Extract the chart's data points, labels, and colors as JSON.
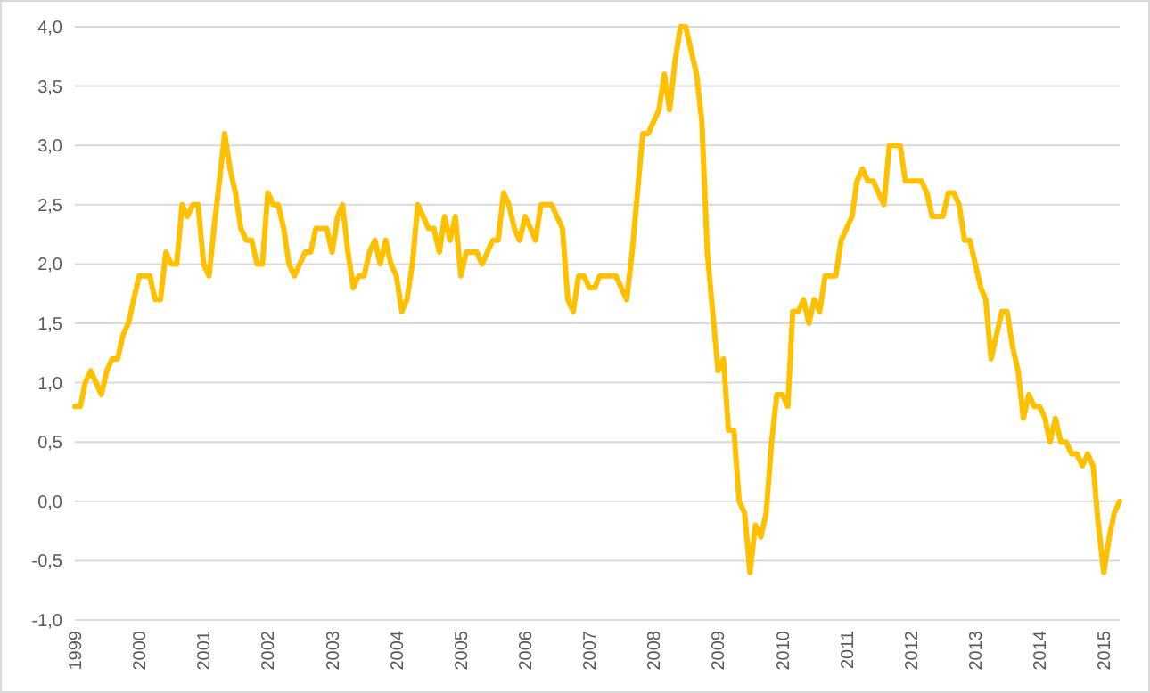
{
  "chart_data": {
    "type": "line",
    "x": [
      "1999-01",
      "1999-02",
      "1999-03",
      "1999-04",
      "1999-05",
      "1999-06",
      "1999-07",
      "1999-08",
      "1999-09",
      "1999-10",
      "1999-11",
      "1999-12",
      "2000-01",
      "2000-02",
      "2000-03",
      "2000-04",
      "2000-05",
      "2000-06",
      "2000-07",
      "2000-08",
      "2000-09",
      "2000-10",
      "2000-11",
      "2000-12",
      "2001-01",
      "2001-02",
      "2001-03",
      "2001-04",
      "2001-05",
      "2001-06",
      "2001-07",
      "2001-08",
      "2001-09",
      "2001-10",
      "2001-11",
      "2001-12",
      "2002-01",
      "2002-02",
      "2002-03",
      "2002-04",
      "2002-05",
      "2002-06",
      "2002-07",
      "2002-08",
      "2002-09",
      "2002-10",
      "2002-11",
      "2002-12",
      "2003-01",
      "2003-02",
      "2003-03",
      "2003-04",
      "2003-05",
      "2003-06",
      "2003-07",
      "2003-08",
      "2003-09",
      "2003-10",
      "2003-11",
      "2003-12",
      "2004-01",
      "2004-02",
      "2004-03",
      "2004-04",
      "2004-05",
      "2004-06",
      "2004-07",
      "2004-08",
      "2004-09",
      "2004-10",
      "2004-11",
      "2004-12",
      "2005-01",
      "2005-02",
      "2005-03",
      "2005-04",
      "2005-05",
      "2005-06",
      "2005-07",
      "2005-08",
      "2005-09",
      "2005-10",
      "2005-11",
      "2005-12",
      "2006-01",
      "2006-02",
      "2006-03",
      "2006-04",
      "2006-05",
      "2006-06",
      "2006-07",
      "2006-08",
      "2006-09",
      "2006-10",
      "2006-11",
      "2006-12",
      "2007-01",
      "2007-02",
      "2007-03",
      "2007-04",
      "2007-05",
      "2007-06",
      "2007-07",
      "2007-08",
      "2007-09",
      "2007-10",
      "2007-11",
      "2007-12",
      "2008-01",
      "2008-02",
      "2008-03",
      "2008-04",
      "2008-05",
      "2008-06",
      "2008-07",
      "2008-08",
      "2008-09",
      "2008-10",
      "2008-11",
      "2008-12",
      "2009-01",
      "2009-02",
      "2009-03",
      "2009-04",
      "2009-05",
      "2009-06",
      "2009-07",
      "2009-08",
      "2009-09",
      "2009-10",
      "2009-11",
      "2009-12",
      "2010-01",
      "2010-02",
      "2010-03",
      "2010-04",
      "2010-05",
      "2010-06",
      "2010-07",
      "2010-08",
      "2010-09",
      "2010-10",
      "2010-11",
      "2010-12",
      "2011-01",
      "2011-02",
      "2011-03",
      "2011-04",
      "2011-05",
      "2011-06",
      "2011-07",
      "2011-08",
      "2011-09",
      "2011-10",
      "2011-11",
      "2011-12",
      "2012-01",
      "2012-02",
      "2012-03",
      "2012-04",
      "2012-05",
      "2012-06",
      "2012-07",
      "2012-08",
      "2012-09",
      "2012-10",
      "2012-11",
      "2012-12",
      "2013-01",
      "2013-02",
      "2013-03",
      "2013-04",
      "2013-05",
      "2013-06",
      "2013-07",
      "2013-08",
      "2013-09",
      "2013-10",
      "2013-11",
      "2013-12",
      "2014-01",
      "2014-02",
      "2014-03",
      "2014-04",
      "2014-05",
      "2014-06",
      "2014-07",
      "2014-08",
      "2014-09",
      "2014-10",
      "2014-11",
      "2014-12",
      "2015-01",
      "2015-02",
      "2015-03",
      "2015-04"
    ],
    "series": [
      {
        "color": "#ffc000",
        "values": [
          0.8,
          0.8,
          1.0,
          1.1,
          1.0,
          0.9,
          1.1,
          1.2,
          1.2,
          1.4,
          1.5,
          1.7,
          1.9,
          1.9,
          1.9,
          1.7,
          1.7,
          2.1,
          2.0,
          2.0,
          2.5,
          2.4,
          2.5,
          2.5,
          2.0,
          1.9,
          2.3,
          2.7,
          3.1,
          2.8,
          2.6,
          2.3,
          2.2,
          2.2,
          2.0,
          2.0,
          2.6,
          2.5,
          2.5,
          2.3,
          2.0,
          1.9,
          2.0,
          2.1,
          2.1,
          2.3,
          2.3,
          2.3,
          2.1,
          2.4,
          2.5,
          2.1,
          1.8,
          1.9,
          1.9,
          2.1,
          2.2,
          2.0,
          2.2,
          2.0,
          1.9,
          1.6,
          1.7,
          2.0,
          2.5,
          2.4,
          2.3,
          2.3,
          2.1,
          2.4,
          2.2,
          2.4,
          1.9,
          2.1,
          2.1,
          2.1,
          2.0,
          2.1,
          2.2,
          2.2,
          2.6,
          2.5,
          2.3,
          2.2,
          2.4,
          2.3,
          2.2,
          2.5,
          2.5,
          2.5,
          2.4,
          2.3,
          1.7,
          1.6,
          1.9,
          1.9,
          1.8,
          1.8,
          1.9,
          1.9,
          1.9,
          1.9,
          1.8,
          1.7,
          2.1,
          2.6,
          3.1,
          3.1,
          3.2,
          3.3,
          3.6,
          3.3,
          3.7,
          4.0,
          4.0,
          3.8,
          3.6,
          3.2,
          2.1,
          1.6,
          1.1,
          1.2,
          0.6,
          0.6,
          0.0,
          -0.1,
          -0.6,
          -0.2,
          -0.3,
          -0.1,
          0.5,
          0.9,
          0.9,
          0.8,
          1.6,
          1.6,
          1.7,
          1.5,
          1.7,
          1.6,
          1.9,
          1.9,
          1.9,
          2.2,
          2.3,
          2.4,
          2.7,
          2.8,
          2.7,
          2.7,
          2.6,
          2.5,
          3.0,
          3.0,
          3.0,
          2.7,
          2.7,
          2.7,
          2.7,
          2.6,
          2.4,
          2.4,
          2.4,
          2.6,
          2.6,
          2.5,
          2.2,
          2.2,
          2.0,
          1.8,
          1.7,
          1.2,
          1.4,
          1.6,
          1.6,
          1.3,
          1.1,
          0.7,
          0.9,
          0.8,
          0.8,
          0.7,
          0.5,
          0.7,
          0.5,
          0.5,
          0.4,
          0.4,
          0.3,
          0.4,
          0.3,
          -0.2,
          -0.6,
          -0.3,
          -0.1,
          0.0
        ]
      }
    ],
    "xlim": [
      "1999-01",
      "2015-04"
    ],
    "xticks": [
      "1999",
      "2000",
      "2001",
      "2002",
      "2003",
      "2004",
      "2005",
      "2006",
      "2007",
      "2008",
      "2009",
      "2010",
      "2011",
      "2012",
      "2013",
      "2014",
      "2015"
    ],
    "ylim": [
      -1,
      4
    ],
    "yticks": [
      {
        "value": -1,
        "label": "-1,0"
      },
      {
        "value": -0.5,
        "label": "-0,5"
      },
      {
        "value": 0,
        "label": "0,0"
      },
      {
        "value": 0.5,
        "label": "0,5"
      },
      {
        "value": 1,
        "label": "1,0"
      },
      {
        "value": 1.5,
        "label": "1,5"
      },
      {
        "value": 2,
        "label": "2,0"
      },
      {
        "value": 2.5,
        "label": "2,5"
      },
      {
        "value": 3,
        "label": "3,0"
      },
      {
        "value": 3.5,
        "label": "3,5"
      },
      {
        "value": 4,
        "label": "4,0"
      }
    ],
    "grid": "y"
  }
}
